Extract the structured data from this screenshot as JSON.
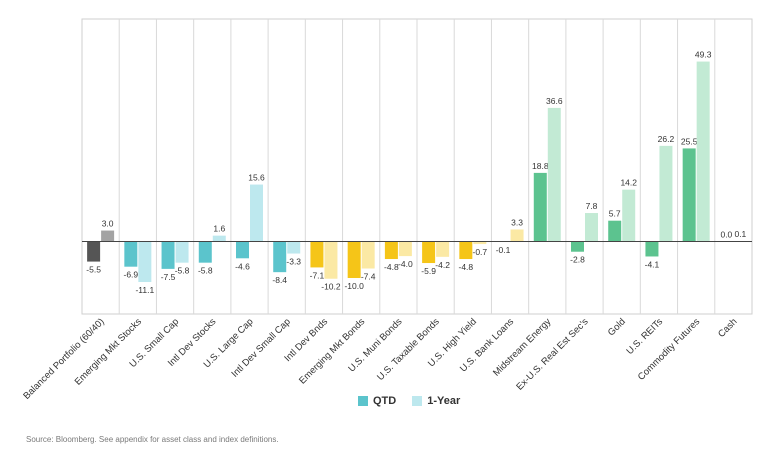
{
  "chart_data": {
    "type": "bar",
    "categories": [
      "Balanced Portfolio (60/40)",
      "Emerging Mkt Stocks",
      "U.S. Small Cap",
      "Intl Dev Stocks",
      "U.S. Large Cap",
      "Intl Dev Small Cap",
      "Intl Dev Bnds",
      "Emerging Mkt Bonds",
      "U.S. Muni Bonds",
      "U.S. Taxable Bonds",
      "U.S. High Yield",
      "U.S. Bank Loans",
      "Midstream Energy",
      "Ex-U.S. Real Est Sec's",
      "Gold",
      "U.S. REITs",
      "Commodity Futures",
      "Cash"
    ],
    "series": [
      {
        "name": "QTD",
        "values": [
          -5.5,
          -6.9,
          -7.5,
          -5.8,
          -4.6,
          -8.4,
          -7.1,
          -10.0,
          -4.8,
          -5.9,
          -4.8,
          -0.1,
          18.8,
          -2.8,
          5.7,
          -4.1,
          25.5,
          0.0
        ]
      },
      {
        "name": "1-Year",
        "values": [
          3.0,
          -11.1,
          -5.8,
          1.6,
          15.6,
          -3.3,
          -10.2,
          -7.4,
          -4.0,
          -4.2,
          -0.7,
          3.3,
          36.6,
          7.8,
          14.2,
          26.2,
          49.3,
          0.1
        ]
      }
    ],
    "data_labels": {
      "QTD": [
        "-5.5",
        "-6.9",
        "-7.5",
        "-5.8",
        "-4.6",
        "-8.4",
        "-7.1",
        "-10.0",
        "-4.8",
        "-5.9",
        "-4.8",
        "-0.1",
        "18.8",
        "-2.8",
        "5.7",
        "-4.1",
        "25.5",
        "0.0"
      ],
      "1-Year": [
        "3.0",
        "-11.1",
        "-5.8",
        "1.6",
        "15.6",
        "-3.3",
        "-10.2",
        "-7.4",
        "-4.0",
        "-4.2",
        "-0.7",
        "3.3",
        "36.6",
        "7.8",
        "14.2",
        "26.2",
        "49.3",
        "0.1"
      ]
    },
    "category_colors": {
      "QTD": [
        "#555555",
        "#5bc4cc",
        "#5bc4cc",
        "#5bc4cc",
        "#5bc4cc",
        "#5bc4cc",
        "#f5c518",
        "#f5c518",
        "#f5c518",
        "#f5c518",
        "#f5c518",
        "#f5c518",
        "#5cc38f",
        "#5cc38f",
        "#5cc38f",
        "#5cc38f",
        "#5cc38f",
        "#5cc38f"
      ],
      "1-Year": [
        "#a3a3a3",
        "#bde8ee",
        "#bde8ee",
        "#bde8ee",
        "#bde8ee",
        "#bde8ee",
        "#fbe9a4",
        "#fbe9a4",
        "#fbe9a4",
        "#fbe9a4",
        "#fbe9a4",
        "#fbe9a4",
        "#c2ead4",
        "#c2ead4",
        "#c2ead4",
        "#c2ead4",
        "#c2ead4",
        "#c2ead4"
      ]
    },
    "ylim": [
      -20,
      60
    ],
    "grid": "vertical separators only",
    "legend_position": "bottom-center"
  },
  "legend": {
    "items": [
      {
        "label": "QTD",
        "color": "#5bc4cc"
      },
      {
        "label": "1-Year",
        "color": "#bde8ee"
      }
    ]
  },
  "source_note": "Source: Bloomberg. See appendix for asset class and index definitions."
}
